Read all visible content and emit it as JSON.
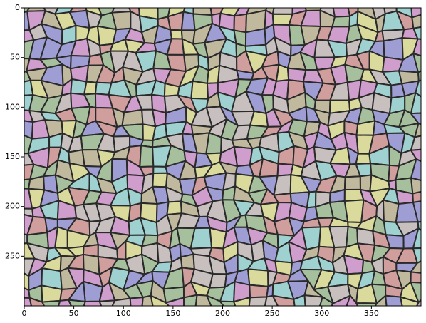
{
  "chart_data": {
    "type": "image",
    "xlim": [
      0,
      400
    ],
    "ylim": [
      300,
      0
    ],
    "xticks": [
      0,
      50,
      100,
      150,
      200,
      250,
      300,
      350
    ],
    "yticks": [
      0,
      50,
      100,
      150,
      200,
      250
    ],
    "colors": [
      "#d9a0a0",
      "#e6e6a0",
      "#a0a0e0",
      "#a0dcdc",
      "#d8a0d8",
      "#a8c8a0",
      "#cfc8c8",
      "#c8c0a0"
    ]
  }
}
